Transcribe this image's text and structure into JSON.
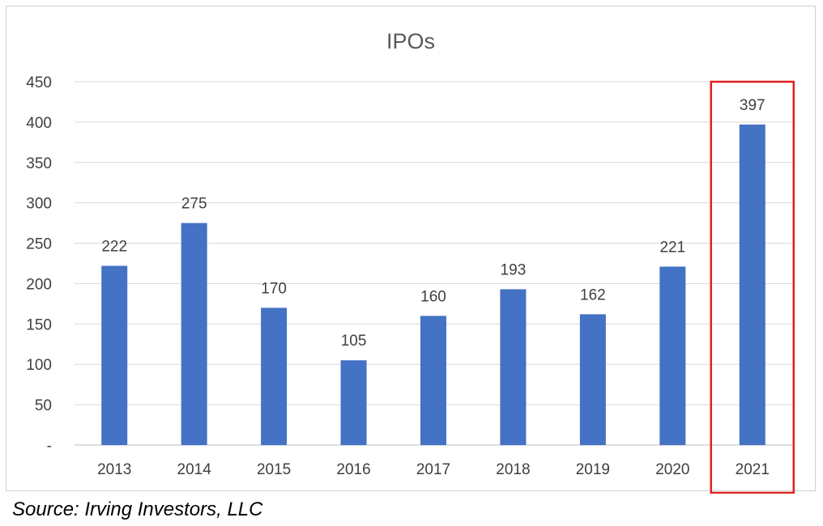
{
  "chart_data": {
    "type": "bar",
    "title": "IPOs",
    "categories": [
      "2013",
      "2014",
      "2015",
      "2016",
      "2017",
      "2018",
      "2019",
      "2020",
      "2021"
    ],
    "values": [
      222,
      275,
      170,
      105,
      160,
      193,
      162,
      221,
      397
    ],
    "data_labels": [
      "222",
      "275",
      "170",
      "105",
      "160",
      "193",
      "162",
      "221",
      "397"
    ],
    "xlabel": "",
    "ylabel": "",
    "ylim": [
      0,
      450
    ],
    "yticks": [
      0,
      50,
      100,
      150,
      200,
      250,
      300,
      350,
      400,
      450
    ],
    "ytick_labels": [
      "-",
      "50",
      "100",
      "150",
      "200",
      "250",
      "300",
      "350",
      "400",
      "450"
    ],
    "grid": true,
    "legend": "none",
    "highlight": {
      "category": "2021",
      "color": "#e02020"
    },
    "bar_color": "#4472c4",
    "grid_color": "#d9d9d9",
    "axis_color": "#bfbfbf"
  },
  "source": "Source: Irving Investors, LLC"
}
